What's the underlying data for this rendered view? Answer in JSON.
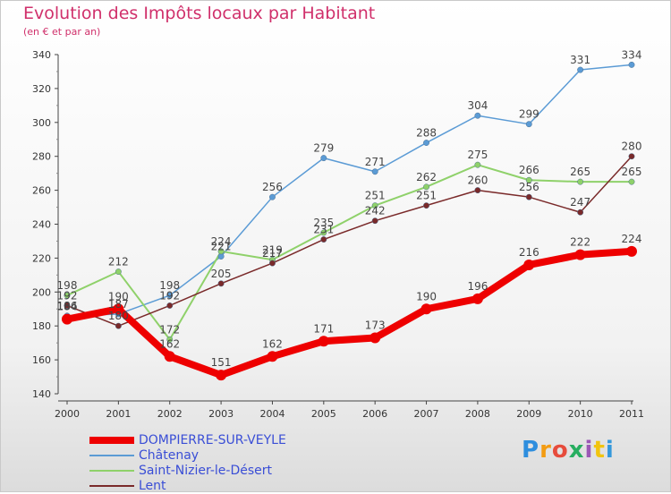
{
  "header": {
    "title": "Evolution des Impôts locaux par Habitant",
    "subtitle": "(en € et par an)"
  },
  "logo": {
    "text": "Proxiti",
    "colors": [
      "#2e8ede",
      "#f39c12",
      "#e74c3c",
      "#27ae60",
      "#9b59b6",
      "#f1c40f",
      "#3498db"
    ]
  },
  "chart_data": {
    "type": "line",
    "x": [
      2000,
      2001,
      2002,
      2003,
      2004,
      2005,
      2006,
      2007,
      2008,
      2009,
      2010,
      2011
    ],
    "ylim": [
      140,
      340
    ],
    "yticks": [
      140,
      160,
      180,
      200,
      220,
      240,
      260,
      280,
      300,
      320,
      340
    ],
    "grid": false,
    "legend": "bottom-left",
    "series": [
      {
        "name": "DOMPIERRE-SUR-VEYLE",
        "color": "#ee0000",
        "values": [
          184,
          190,
          162,
          151,
          162,
          171,
          173,
          190,
          196,
          216,
          222,
          224
        ]
      },
      {
        "name": "Châtenay",
        "color": "#5b9bd5",
        "values": [
          186,
          187,
          198,
          221,
          256,
          279,
          271,
          288,
          304,
          299,
          331,
          334
        ]
      },
      {
        "name": "Saint-Nizier-le-Désert",
        "color": "#8fd16a",
        "values": [
          198,
          212,
          172,
          224,
          219,
          235,
          251,
          262,
          275,
          266,
          265,
          265
        ]
      },
      {
        "name": "Lent",
        "color": "#7a2a2a",
        "values": [
          192,
          180,
          192,
          205,
          217,
          231,
          242,
          251,
          260,
          256,
          247,
          280
        ]
      }
    ]
  }
}
